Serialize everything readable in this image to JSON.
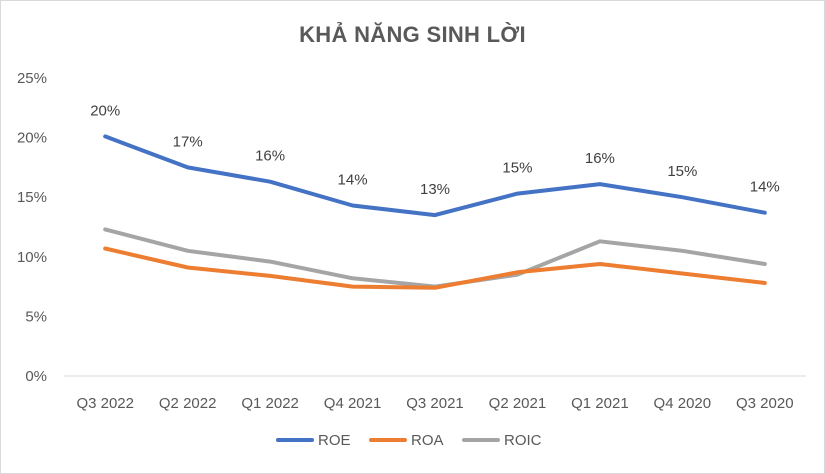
{
  "chart_data": {
    "type": "line",
    "title": "KHẢ NĂNG SINH LỜI",
    "xlabel": "",
    "ylabel": "",
    "categories": [
      "Q3 2022",
      "Q2 2022",
      "Q1 2022",
      "Q4 2021",
      "Q3 2021",
      "Q2 2021",
      "Q1 2021",
      "Q4 2020",
      "Q3 2020"
    ],
    "ylim": [
      0,
      0.25
    ],
    "yticks": [
      "0%",
      "5%",
      "10%",
      "15%",
      "20%",
      "25%"
    ],
    "grid": false,
    "legend_position": "bottom",
    "series": [
      {
        "name": "ROE",
        "color": "#4472C4",
        "values": [
          0.201,
          0.175,
          0.163,
          0.143,
          0.135,
          0.153,
          0.161,
          0.15,
          0.137
        ],
        "data_labels": [
          "20%",
          "17%",
          "16%",
          "14%",
          "13%",
          "15%",
          "16%",
          "15%",
          "14%"
        ]
      },
      {
        "name": "ROA",
        "color": "#ED7D31",
        "values": [
          0.107,
          0.091,
          0.084,
          0.075,
          0.074,
          0.087,
          0.094,
          0.086,
          0.078
        ]
      },
      {
        "name": "ROIC",
        "color": "#A5A5A5",
        "values": [
          0.123,
          0.105,
          0.096,
          0.082,
          0.075,
          0.085,
          0.113,
          0.105,
          0.094
        ]
      }
    ]
  }
}
